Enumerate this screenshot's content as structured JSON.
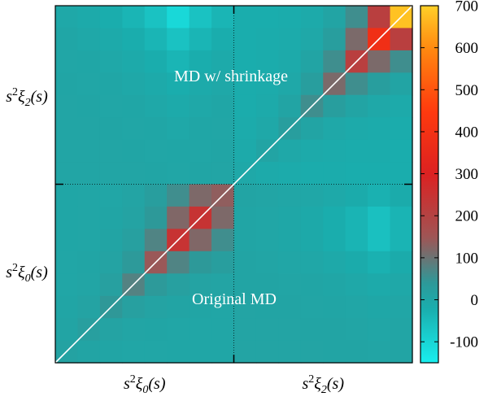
{
  "chart_data": {
    "type": "heatmap",
    "title": "",
    "annotations": {
      "upper": "MD w/ shrinkage",
      "lower": "Original MD"
    },
    "x_block_labels": [
      {
        "s": "s",
        "sup": "2",
        "xi": "ξ",
        "sub": "0",
        "arg": "(s)"
      },
      {
        "s": "s",
        "sup": "2",
        "xi": "ξ",
        "sub": "2",
        "arg": "(s)"
      }
    ],
    "y_block_labels": [
      {
        "s": "s",
        "sup": "2",
        "xi": "ξ",
        "sub": "0",
        "arg": "(s)"
      },
      {
        "s": "s",
        "sup": "2",
        "xi": "ξ",
        "sub": "2",
        "arg": "(s)"
      }
    ],
    "grid_size": 16,
    "block_size": 8,
    "colorbar": {
      "min": -150,
      "max": 700,
      "ticks": [
        -100,
        0,
        100,
        200,
        300,
        400,
        500,
        600,
        700
      ],
      "tick_labels": [
        "-100",
        "0",
        "100",
        "200",
        "300",
        "400",
        "500",
        "600",
        "700"
      ]
    },
    "diagonal_line": true,
    "block_divider_lines": true
  },
  "colors": {
    "cmap": [
      "#19eeee",
      "#1aadad",
      "#2d9999",
      "#a05454",
      "#dc2121",
      "#ff3a0e",
      "#ff8a10",
      "#ffd028"
    ],
    "cmap_stops": [
      -150,
      -20,
      40,
      150,
      300,
      450,
      600,
      700
    ],
    "diagonal": "#ffffff",
    "annotation_text": "#ffffff",
    "axis": "#000000"
  }
}
